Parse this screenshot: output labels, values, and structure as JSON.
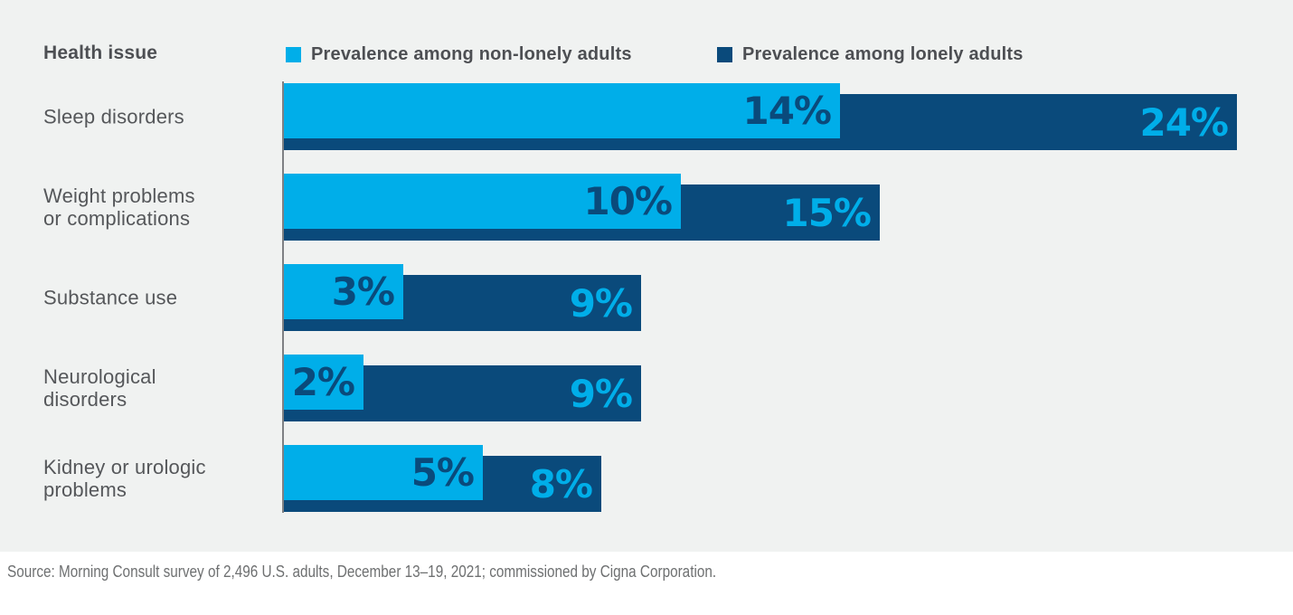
{
  "header": {
    "title": "Health issue"
  },
  "source": {
    "text": "Source: Morning Consult survey of 2,496 U.S. adults, December 13–19, 2021; commissioned by Cigna Corporation."
  },
  "colors": {
    "background_gray": "#F0F2F1",
    "light_blue": "#00AEE9",
    "navy": "#0A4A7B",
    "header_text": "#4D4F53",
    "category_text": "#55575A",
    "axis_line": "#7E8083",
    "source_text": "#6E7071"
  },
  "chart_data": {
    "type": "bar",
    "orientation": "horizontal",
    "title": "",
    "axis_label": "Health issue",
    "grid": false,
    "legend_position": "top",
    "value_suffix": "%",
    "xlim": [
      0,
      24
    ],
    "categories": [
      {
        "lines": [
          "Sleep disorders"
        ]
      },
      {
        "lines": [
          "Weight problems",
          "or complications"
        ]
      },
      {
        "lines": [
          "Substance use"
        ]
      },
      {
        "lines": [
          "Neurological",
          "disorders"
        ]
      },
      {
        "lines": [
          "Kidney or urologic",
          "problems"
        ]
      }
    ],
    "series": [
      {
        "name": "Prevalence among non-lonely adults",
        "color": "#00AEE9",
        "values": [
          14,
          10,
          3,
          2,
          5
        ],
        "labels": [
          "14%",
          "10%",
          "3%",
          "2%",
          "5%"
        ]
      },
      {
        "name": "Prevalence among lonely adults",
        "color": "#0A4A7B",
        "values": [
          24,
          15,
          9,
          9,
          8
        ],
        "labels": [
          "24%",
          "15%",
          "9%",
          "9%",
          "8%"
        ]
      }
    ]
  }
}
